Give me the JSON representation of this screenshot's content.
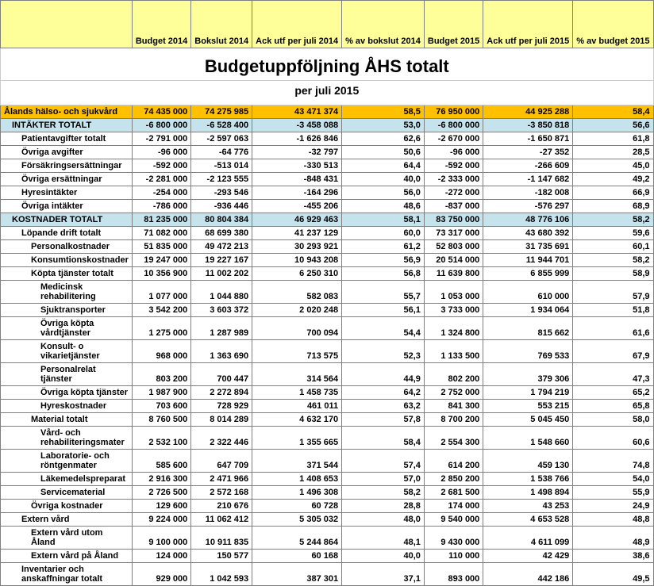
{
  "title": "Budgetuppföljning ÅHS totalt",
  "subtitle": "per juli 2015",
  "columns": [
    "",
    "Budget 2014",
    "Bokslut 2014",
    "Ack utf per juli 2014",
    "% av bokslut 2014",
    "Budget 2015",
    "Ack utf per juli 2015",
    "% av budget 2015"
  ],
  "rows": [
    {
      "style": "orange",
      "indent": 0,
      "label": "Ålands hälso- och sjukvård",
      "cells": [
        "74 435 000",
        "74 275 985",
        "43 471 374",
        "58,5",
        "76 950 000",
        "44 925 288",
        "58,4"
      ]
    },
    {
      "style": "blue",
      "indent": 1,
      "label": "INTÄKTER TOTALT",
      "cells": [
        "-6 800 000",
        "-6 528 400",
        "-3 458 088",
        "53,0",
        "-6 800 000",
        "-3 850 818",
        "56,6"
      ]
    },
    {
      "style": "",
      "indent": 2,
      "label": "Patientavgifter totalt",
      "cells": [
        "-2 791 000",
        "-2 597 063",
        "-1 626 846",
        "62,6",
        "-2 670 000",
        "-1 650 871",
        "61,8"
      ]
    },
    {
      "style": "",
      "indent": 2,
      "label": "Övriga avgifter",
      "cells": [
        "-96 000",
        "-64 776",
        "-32 797",
        "50,6",
        "-96 000",
        "-27 352",
        "28,5"
      ]
    },
    {
      "style": "",
      "indent": 2,
      "label": "Försäkringsersättningar",
      "cells": [
        "-592 000",
        "-513 014",
        "-330 513",
        "64,4",
        "-592 000",
        "-266 609",
        "45,0"
      ]
    },
    {
      "style": "",
      "indent": 2,
      "label": "Övriga ersättningar",
      "cells": [
        "-2 281 000",
        "-2 123 555",
        "-848 431",
        "40,0",
        "-2 333 000",
        "-1 147 682",
        "49,2"
      ]
    },
    {
      "style": "",
      "indent": 2,
      "label": "Hyresintäkter",
      "cells": [
        "-254 000",
        "-293 546",
        "-164 296",
        "56,0",
        "-272 000",
        "-182 008",
        "66,9"
      ]
    },
    {
      "style": "",
      "indent": 2,
      "label": "Övriga intäkter",
      "cells": [
        "-786 000",
        "-936 446",
        "-455 206",
        "48,6",
        "-837 000",
        "-576 297",
        "68,9"
      ]
    },
    {
      "style": "blue",
      "indent": 1,
      "label": "KOSTNADER TOTALT",
      "cells": [
        "81 235 000",
        "80 804 384",
        "46 929 463",
        "58,1",
        "83 750 000",
        "48 776 106",
        "58,2"
      ]
    },
    {
      "style": "",
      "indent": 2,
      "label": "Löpande drift totalt",
      "cells": [
        "71 082 000",
        "68 699 380",
        "41 237 129",
        "60,0",
        "73 317 000",
        "43 680 392",
        "59,6"
      ]
    },
    {
      "style": "",
      "indent": 3,
      "label": "Personalkostnader",
      "cells": [
        "51 835 000",
        "49 472 213",
        "30 293 921",
        "61,2",
        "52 803 000",
        "31 735 691",
        "60,1"
      ]
    },
    {
      "style": "",
      "indent": 3,
      "label": "Konsumtionskostnader",
      "cells": [
        "19 247 000",
        "19 227 167",
        "10 943 208",
        "56,9",
        "20 514 000",
        "11 944 701",
        "58,2"
      ]
    },
    {
      "style": "",
      "indent": 3,
      "label": "Köpta tjänster totalt",
      "cells": [
        "10 356 900",
        "11 002 202",
        "6 250 310",
        "56,8",
        "11 639 800",
        "6 855 999",
        "58,9"
      ]
    },
    {
      "style": "",
      "indent": 4,
      "label": "Medicinsk rehabilitering",
      "cells": [
        "1 077 000",
        "1 044 880",
        "582 083",
        "55,7",
        "1 053 000",
        "610 000",
        "57,9"
      ]
    },
    {
      "style": "",
      "indent": 4,
      "label": "Sjuktransporter",
      "cells": [
        "3 542 200",
        "3 603 372",
        "2 020 248",
        "56,1",
        "3 733 000",
        "1 934 064",
        "51,8"
      ]
    },
    {
      "style": "",
      "indent": 4,
      "label": "Övriga köpta vårdtjänster",
      "cells": [
        "1 275 000",
        "1 287 989",
        "700 094",
        "54,4",
        "1 324 800",
        "815 662",
        "61,6"
      ]
    },
    {
      "style": "",
      "indent": 4,
      "label": "Konsult- o vikarietjänster",
      "cells": [
        "968 000",
        "1 363 690",
        "713 575",
        "52,3",
        "1 133 500",
        "769 533",
        "67,9"
      ]
    },
    {
      "style": "",
      "indent": 4,
      "label": "Personalrelat tjänster",
      "cells": [
        "803 200",
        "700 447",
        "314 564",
        "44,9",
        "802 200",
        "379 306",
        "47,3"
      ]
    },
    {
      "style": "",
      "indent": 4,
      "label": "Övriga köpta tjänster",
      "cells": [
        "1 987 900",
        "2 272 894",
        "1 458 735",
        "64,2",
        "2 752 000",
        "1 794 219",
        "65,2"
      ]
    },
    {
      "style": "",
      "indent": 4,
      "label": "Hyreskostnader",
      "cells": [
        "703 600",
        "728 929",
        "461 011",
        "63,2",
        "841 300",
        "553 215",
        "65,8"
      ]
    },
    {
      "style": "",
      "indent": 3,
      "label": "Material totalt",
      "cells": [
        "8 760 500",
        "8 014 289",
        "4 632 170",
        "57,8",
        "8 700 200",
        "5 045 450",
        "58,0"
      ]
    },
    {
      "style": "",
      "indent": 4,
      "label": "Vård- och rehabiliteringsmater",
      "cells": [
        "2 532 100",
        "2 322 446",
        "1 355 665",
        "58,4",
        "2 554 300",
        "1 548 660",
        "60,6"
      ]
    },
    {
      "style": "",
      "indent": 4,
      "label": "Laboratorie- och röntgenmater",
      "cells": [
        "585 600",
        "647 709",
        "371 544",
        "57,4",
        "614 200",
        "459 130",
        "74,8"
      ]
    },
    {
      "style": "",
      "indent": 4,
      "label": "Läkemedelspreparat",
      "cells": [
        "2 916 300",
        "2 471 966",
        "1 408 653",
        "57,0",
        "2 850 200",
        "1 538 766",
        "54,0"
      ]
    },
    {
      "style": "",
      "indent": 4,
      "label": "Servicematerial",
      "cells": [
        "2 726 500",
        "2 572 168",
        "1 496 308",
        "58,2",
        "2 681 500",
        "1 498 894",
        "55,9"
      ]
    },
    {
      "style": "",
      "indent": 3,
      "label": "Övriga kostnader",
      "cells": [
        "129 600",
        "210 676",
        "60 728",
        "28,8",
        "174 000",
        "43 253",
        "24,9"
      ]
    },
    {
      "style": "",
      "indent": 2,
      "label": "Extern vård",
      "cells": [
        "9 224 000",
        "11 062 412",
        "5 305 032",
        "48,0",
        "9 540 000",
        "4 653 528",
        "48,8"
      ]
    },
    {
      "style": "",
      "indent": 3,
      "label": "Extern vård utom Åland",
      "cells": [
        "9 100 000",
        "10 911 835",
        "5 244 864",
        "48,1",
        "9 430 000",
        "4 611 099",
        "48,9"
      ]
    },
    {
      "style": "",
      "indent": 3,
      "label": "Extern vård på Åland",
      "cells": [
        "124 000",
        "150 577",
        "60 168",
        "40,0",
        "110 000",
        "42 429",
        "38,6"
      ]
    },
    {
      "style": "",
      "indent": 2,
      "label": "Inventarier och anskaffningar totalt",
      "cells": [
        "929 000",
        "1 042 593",
        "387 301",
        "37,1",
        "893 000",
        "442 186",
        "49,5"
      ]
    }
  ]
}
